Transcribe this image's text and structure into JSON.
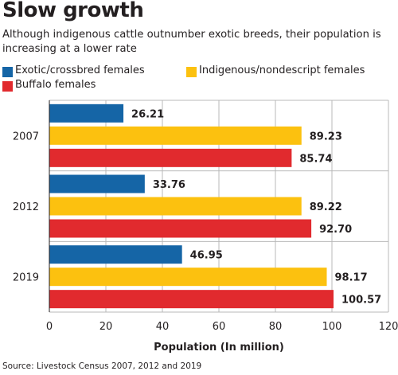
{
  "title": "Slow growth",
  "subtitle": "Although indigenous cattle outnumber exotic breeds, their population is increasing at a lower rate",
  "source": "Source: Livestock Census 2007, 2012 and 2019",
  "legend": [
    {
      "label": "Exotic/crossbred females",
      "color": "#1565a6"
    },
    {
      "label": "Indigenous/nondescript females",
      "color": "#fcc10f"
    },
    {
      "label": "Buffalo females",
      "color": "#e12a2e"
    }
  ],
  "chart_data": {
    "type": "bar",
    "orientation": "horizontal",
    "categories": [
      "2007",
      "2012",
      "2019"
    ],
    "series": [
      {
        "name": "Exotic/crossbred females",
        "color": "#1565a6",
        "values": [
          26.21,
          33.76,
          46.95
        ],
        "labels": [
          "26.21",
          "33.76",
          "46.95"
        ]
      },
      {
        "name": "Indigenous/nondescript females",
        "color": "#fcc10f",
        "values": [
          89.23,
          89.22,
          98.17
        ],
        "labels": [
          "89.23",
          "89.22",
          "98.17"
        ]
      },
      {
        "name": "Buffalo females",
        "color": "#e12a2e",
        "values": [
          85.74,
          92.7,
          100.57
        ],
        "labels": [
          "85.74",
          "92.70",
          "100.57"
        ]
      }
    ],
    "xlabel": "Population (In million)",
    "ylabel": "",
    "xlim": [
      0,
      120
    ],
    "xticks": [
      0,
      20,
      40,
      60,
      80,
      100,
      120
    ],
    "grid": true,
    "legend_position": "top"
  }
}
